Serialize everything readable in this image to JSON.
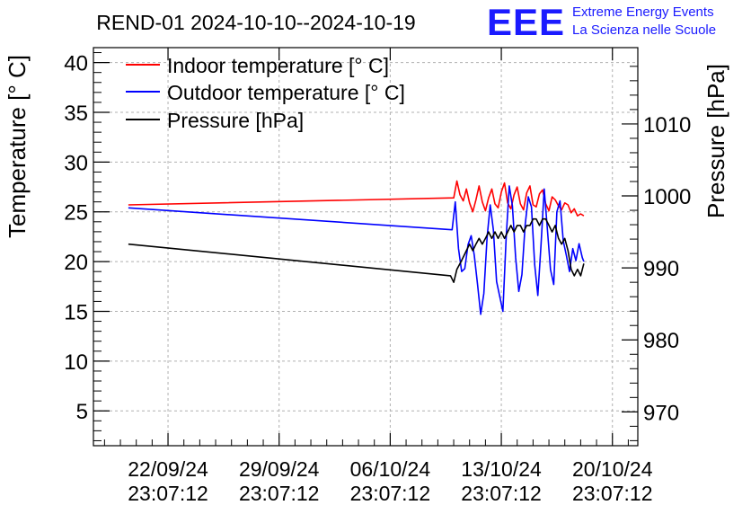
{
  "header": {
    "title": "REND-01 2024-10-10--2024-10-19",
    "logo_mark": "EEE",
    "logo_line1": "Extreme Energy Events",
    "logo_line2": "La Scienza nelle Scuole"
  },
  "colors": {
    "indoor": "#ff0000",
    "outdoor": "#0000ff",
    "pressure": "#000000",
    "logo": "#1a1aff",
    "grid": "#b0b0b0"
  },
  "chart_data": {
    "type": "line",
    "title": "REND-01 2024-10-10--2024-10-19",
    "ylabel": "Temperature [° C]",
    "y2label": "Pressure [hPa]",
    "xlabel": "",
    "x_unit": "days since 22/09/24 23:07:12",
    "xlim": [
      -4.7,
      29.6
    ],
    "ylim": [
      1.5,
      41.5
    ],
    "y2lim": [
      965.3,
      1020.6
    ],
    "y_ticks": [
      5,
      10,
      15,
      20,
      25,
      30,
      35,
      40
    ],
    "y2_ticks": [
      970,
      980,
      990,
      1000,
      1010
    ],
    "x_ticks": [
      {
        "x": 0,
        "date": "22/09/24",
        "time": "23:07:12"
      },
      {
        "x": 7,
        "date": "29/09/24",
        "time": "23:07:12"
      },
      {
        "x": 14,
        "date": "06/10/24",
        "time": "23:07:12"
      },
      {
        "x": 21,
        "date": "13/10/24",
        "time": "23:07:12"
      },
      {
        "x": 28,
        "date": "20/10/24",
        "time": "23:07:12"
      }
    ],
    "grid": true,
    "legend_position": "top-left",
    "series": [
      {
        "name": "Indoor temperature [° C]",
        "axis": "left",
        "x": [
          -2.5,
          18.0,
          18.2,
          18.4,
          18.6,
          18.8,
          19.0,
          19.2,
          19.4,
          19.6,
          19.8,
          20.0,
          20.2,
          20.4,
          20.6,
          20.8,
          21.0,
          21.2,
          21.4,
          21.6,
          21.8,
          22.0,
          22.2,
          22.4,
          22.6,
          22.8,
          23.0,
          23.2,
          23.4,
          23.6,
          23.8,
          24.0,
          24.2,
          24.4,
          24.6,
          24.8,
          25.0,
          25.2,
          25.4,
          25.6,
          25.8,
          26.0,
          26.2
        ],
        "y": [
          25.7,
          26.4,
          28.1,
          26.7,
          26.1,
          27.3,
          25.9,
          25.0,
          26.2,
          27.6,
          26.0,
          25.1,
          26.4,
          27.3,
          25.8,
          25.4,
          27.0,
          27.9,
          25.9,
          25.3,
          26.7,
          27.5,
          25.8,
          25.2,
          26.9,
          27.6,
          25.7,
          25.5,
          26.8,
          27.2,
          25.8,
          25.1,
          26.5,
          26.2,
          25.6,
          25.2,
          25.9,
          25.7,
          24.9,
          25.3,
          24.6,
          24.8,
          24.6
        ]
      },
      {
        "name": "Outdoor temperature [° C]",
        "axis": "left",
        "x": [
          -2.5,
          17.9,
          18.1,
          18.3,
          18.5,
          18.7,
          18.9,
          19.1,
          19.3,
          19.5,
          19.7,
          19.9,
          20.1,
          20.3,
          20.5,
          20.7,
          20.9,
          21.1,
          21.3,
          21.5,
          21.7,
          21.9,
          22.1,
          22.3,
          22.5,
          22.7,
          22.9,
          23.1,
          23.3,
          23.5,
          23.7,
          23.9,
          24.1,
          24.3,
          24.5,
          24.7,
          24.9,
          25.1,
          25.3,
          25.5,
          25.7,
          25.9,
          26.1,
          26.2
        ],
        "y": [
          25.4,
          23.2,
          26.0,
          21.3,
          19.0,
          19.3,
          21.7,
          22.6,
          20.6,
          17.7,
          14.7,
          16.8,
          22.4,
          25.7,
          23.2,
          18.0,
          16.5,
          15.0,
          22.3,
          27.6,
          25.6,
          20.4,
          17.0,
          18.7,
          23.7,
          26.5,
          25.5,
          19.7,
          16.6,
          21.6,
          27.3,
          23.3,
          19.2,
          17.7,
          25.0,
          26.1,
          22.1,
          20.6,
          19.0,
          21.3,
          20.1,
          21.8,
          20.4,
          20.0
        ]
      },
      {
        "name": "Pressure [hPa]",
        "axis": "right",
        "x": [
          -2.5,
          17.8,
          18.0,
          18.2,
          18.4,
          18.6,
          18.8,
          19.0,
          19.2,
          19.4,
          19.6,
          19.8,
          20.0,
          20.2,
          20.4,
          20.6,
          20.8,
          21.0,
          21.2,
          21.4,
          21.6,
          21.8,
          22.0,
          22.2,
          22.4,
          22.6,
          22.8,
          23.0,
          23.2,
          23.4,
          23.6,
          23.8,
          24.0,
          24.2,
          24.4,
          24.6,
          24.8,
          25.0,
          25.2,
          25.4,
          25.6,
          25.8,
          26.0,
          26.2
        ],
        "y": [
          993.3,
          988.9,
          988.0,
          989.8,
          990.6,
          991.5,
          992.4,
          993.3,
          992.4,
          993.3,
          994.1,
          993.3,
          994.1,
          995.0,
          994.1,
          995.0,
          994.1,
          995.0,
          994.1,
          995.0,
          995.9,
          995.0,
          995.9,
          995.9,
          995.0,
          995.9,
          995.9,
          996.8,
          996.8,
          995.9,
          996.8,
          996.8,
          995.9,
          995.0,
          995.9,
          994.1,
          993.3,
          994.1,
          992.4,
          989.8,
          988.9,
          989.8,
          988.9,
          990.6
        ]
      }
    ]
  }
}
